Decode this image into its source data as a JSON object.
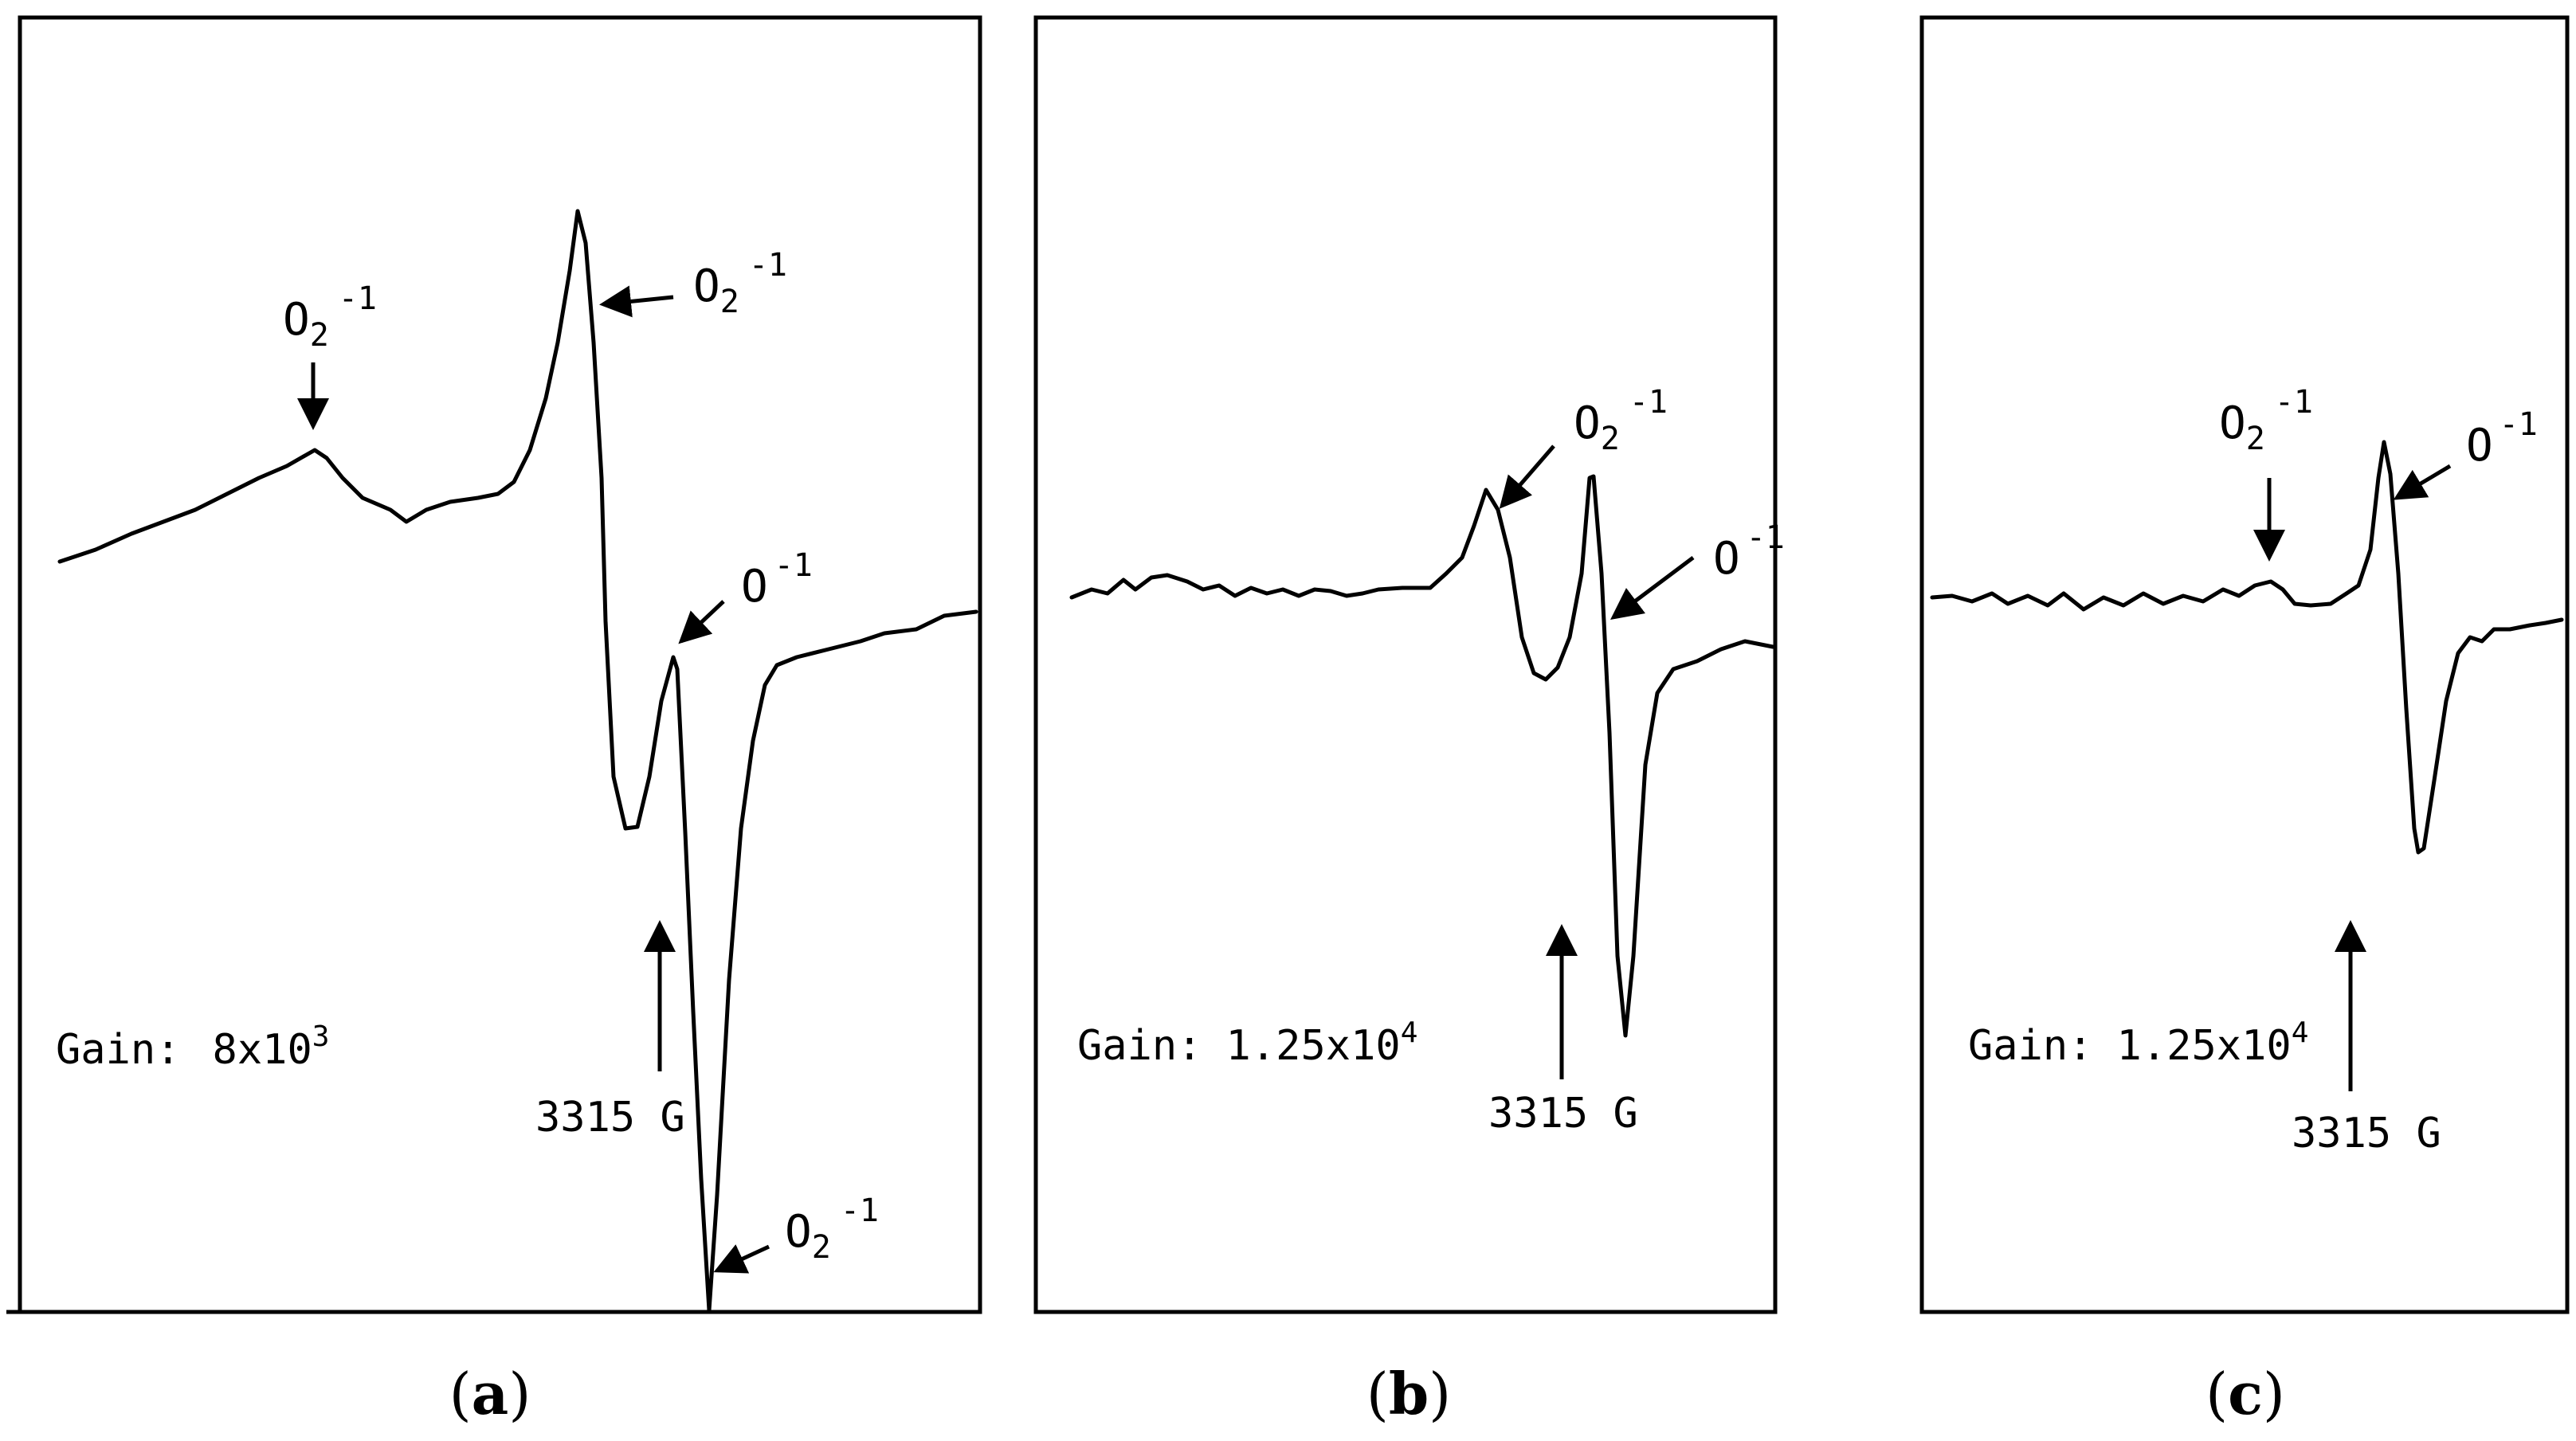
{
  "chart_data": [
    {
      "type": "line",
      "panel": "a",
      "caption_label": "a",
      "gain_label": "Gain:",
      "gain_value": "8x10",
      "gain_exponent": "3",
      "field_marker_label": "3315 G",
      "annotations": [
        {
          "species": "O",
          "subscript": "2",
          "superscript": "-1",
          "feature": "broad shoulder"
        },
        {
          "species": "O",
          "subscript": "2",
          "superscript": "-1",
          "feature": "positive peak"
        },
        {
          "species": "O",
          "subscript": "",
          "superscript": "-1",
          "feature": "narrow peak"
        },
        {
          "species": "O",
          "subscript": "2",
          "superscript": "-1",
          "feature": "negative minimum"
        }
      ]
    },
    {
      "type": "line",
      "panel": "b",
      "caption_label": "b",
      "gain_label": "Gain:",
      "gain_value": "1.25x10",
      "gain_exponent": "4",
      "field_marker_label": "3315 G",
      "annotations": [
        {
          "species": "O",
          "subscript": "2",
          "superscript": "-1",
          "feature": "positive peak"
        },
        {
          "species": "O",
          "subscript": "",
          "superscript": "-1",
          "feature": "narrow peak"
        }
      ]
    },
    {
      "type": "line",
      "panel": "c",
      "caption_label": "c",
      "gain_label": "Gain:",
      "gain_value": "1.25x10",
      "gain_exponent": "4",
      "field_marker_label": "3315 G",
      "annotations": [
        {
          "species": "O",
          "subscript": "2",
          "superscript": "-1",
          "feature": "weak shoulder"
        },
        {
          "species": "O",
          "subscript": "",
          "superscript": "-1",
          "feature": "narrow peak"
        }
      ]
    }
  ]
}
